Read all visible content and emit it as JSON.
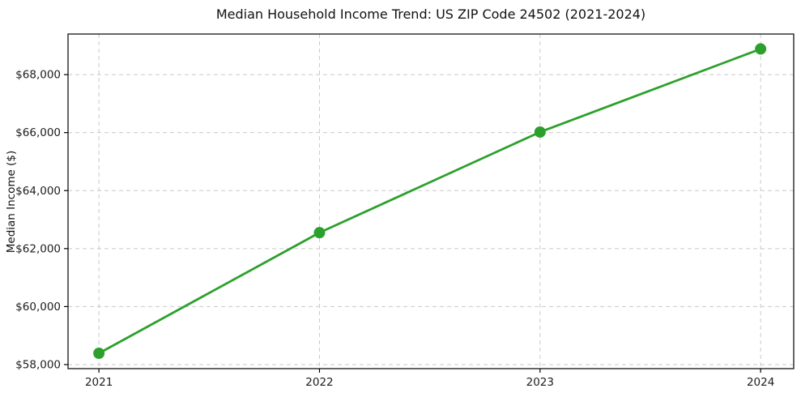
{
  "chart_data": {
    "type": "line",
    "title": "Median Household Income Trend: US ZIP Code 24502 (2021-2024)",
    "xlabel": "",
    "ylabel": "Median Income ($)",
    "x": [
      2021,
      2022,
      2023,
      2024
    ],
    "series": [
      {
        "name": "Median Household Income",
        "values": [
          58390,
          62550,
          66020,
          68885
        ]
      }
    ],
    "xticks": [
      2021,
      2022,
      2023,
      2024
    ],
    "xtick_labels": [
      "2021",
      "2022",
      "2023",
      "2024"
    ],
    "yticks": [
      58000,
      60000,
      62000,
      64000,
      66000,
      68000
    ],
    "ytick_labels": [
      "$58,000",
      "$60,000",
      "$62,000",
      "$64,000",
      "$66,000",
      "$68,000"
    ],
    "ytick_prefix": "$",
    "xlim": [
      2020.86,
      2024.15
    ],
    "ylim": [
      57860,
      69400
    ],
    "grid": {
      "horizontal": true,
      "vertical": true,
      "style": "dashed"
    },
    "legend": "none",
    "styles": {
      "line_color": "#2ca02c",
      "marker": "circle",
      "marker_color": "#2ca02c",
      "grid_color": "#c9c9c9",
      "spine_color": "#000000",
      "tick_color": "#000000",
      "text_color": "#1c1c1c",
      "background": "#ffffff"
    }
  }
}
